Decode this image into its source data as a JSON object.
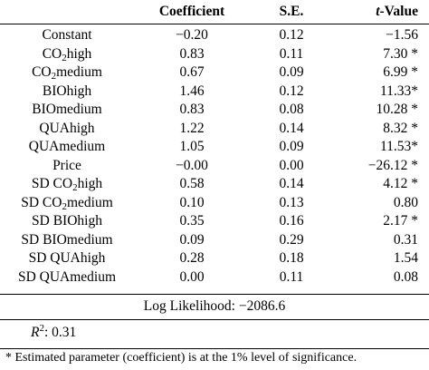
{
  "headers": {
    "coefficient": "Coefficient",
    "se": "S.E.",
    "t_prefix": "t",
    "t_suffix": "-Value"
  },
  "rows": [
    {
      "label_pre": "Constant",
      "label_sub": "",
      "label_post": "",
      "coef": "−0.20",
      "se": "0.12",
      "t": "−1.56"
    },
    {
      "label_pre": "CO",
      "label_sub": "2",
      "label_post": "high",
      "coef": "0.83",
      "se": "0.11",
      "t": "7.30 *"
    },
    {
      "label_pre": "CO",
      "label_sub": "2",
      "label_post": "medium",
      "coef": "0.67",
      "se": "0.09",
      "t": "6.99 *"
    },
    {
      "label_pre": "BIOhigh",
      "label_sub": "",
      "label_post": "",
      "coef": "1.46",
      "se": "0.12",
      "t": "11.33*"
    },
    {
      "label_pre": "BIOmedium",
      "label_sub": "",
      "label_post": "",
      "coef": "0.83",
      "se": "0.08",
      "t": "10.28 *"
    },
    {
      "label_pre": "QUAhigh",
      "label_sub": "",
      "label_post": "",
      "coef": "1.22",
      "se": "0.14",
      "t": "8.32 *"
    },
    {
      "label_pre": "QUAmedium",
      "label_sub": "",
      "label_post": "",
      "coef": "1.05",
      "se": "0.09",
      "t": "11.53*"
    },
    {
      "label_pre": "Price",
      "label_sub": "",
      "label_post": "",
      "coef": "−0.00",
      "se": "0.00",
      "t": "−26.12 *"
    },
    {
      "label_pre": "SD CO",
      "label_sub": "2",
      "label_post": "high",
      "coef": "0.58",
      "se": "0.14",
      "t": "4.12 *"
    },
    {
      "label_pre": "SD CO",
      "label_sub": "2",
      "label_post": "medium",
      "coef": "0.10",
      "se": "0.13",
      "t": "0.80"
    },
    {
      "label_pre": "SD BIOhigh",
      "label_sub": "",
      "label_post": "",
      "coef": "0.35",
      "se": "0.16",
      "t": "2.17 *"
    },
    {
      "label_pre": "SD BIOmedium",
      "label_sub": "",
      "label_post": "",
      "coef": "0.09",
      "se": "0.29",
      "t": "0.31"
    },
    {
      "label_pre": "SD QUAhigh",
      "label_sub": "",
      "label_post": "",
      "coef": "0.28",
      "se": "0.18",
      "t": "1.54"
    },
    {
      "label_pre": "SD QUAmedium",
      "label_sub": "",
      "label_post": "",
      "coef": "0.00",
      "se": "0.11",
      "t": "0.08"
    }
  ],
  "log_likelihood": "Log Likelihood: −2086.6",
  "r2": {
    "symbol": "R",
    "exp": "2",
    "value": ": 0.31"
  },
  "footnote": "* Estimated parameter (coefficient) is at the 1% level of significance."
}
